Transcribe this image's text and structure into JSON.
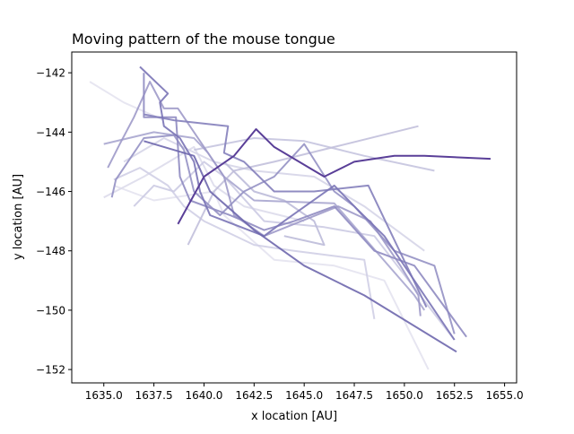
{
  "chart_data": {
    "type": "line",
    "title": "Moving pattern of the mouse tongue",
    "xlabel": "x location [AU]",
    "ylabel": "y location [AU]",
    "xlim": [
      1633.4,
      1655.6
    ],
    "ylim": [
      -152.45,
      -141.3
    ],
    "xticks": [
      1635.0,
      1637.5,
      1640.0,
      1642.5,
      1645.0,
      1647.5,
      1650.0,
      1652.5,
      1655.0
    ],
    "xtick_labels": [
      "1635.0",
      "1637.5",
      "1640.0",
      "1642.5",
      "1645.0",
      "1647.5",
      "1650.0",
      "1652.5",
      "1655.0"
    ],
    "yticks": [
      -142,
      -144,
      -146,
      -148,
      -150,
      -152
    ],
    "ytick_labels": [
      "−142",
      "−144",
      "−146",
      "−148",
      "−150",
      "−152"
    ],
    "grid": false,
    "legend": "none",
    "colormap": "Purples",
    "series": [
      {
        "color": "#e4e3f0",
        "opacity": 0.9,
        "points": [
          [
            1634.3,
            -142.3
          ],
          [
            1636.0,
            -143.0
          ],
          [
            1638.0,
            -143.6
          ]
        ]
      },
      {
        "color": "#e4e3f0",
        "opacity": 0.9,
        "points": [
          [
            1635.5,
            -145.8
          ],
          [
            1637.5,
            -146.3
          ],
          [
            1640.5,
            -146.0
          ],
          [
            1641.0,
            -146.8
          ],
          [
            1643.5,
            -148.3
          ],
          [
            1646.5,
            -148.5
          ],
          [
            1649.0,
            -149.0
          ],
          [
            1651.2,
            -152.0
          ]
        ]
      },
      {
        "color": "#dddceb",
        "opacity": 0.9,
        "points": [
          [
            1635.0,
            -146.2
          ],
          [
            1637.0,
            -145.5
          ],
          [
            1639.5,
            -144.5
          ],
          [
            1640.5,
            -145.8
          ],
          [
            1642.0,
            -146.5
          ],
          [
            1645.0,
            -147.0
          ]
        ]
      },
      {
        "color": "#d6d5e8",
        "opacity": 0.9,
        "points": [
          [
            1636.0,
            -145.0
          ],
          [
            1638.0,
            -144.2
          ],
          [
            1640.5,
            -145.0
          ],
          [
            1642.5,
            -145.3
          ],
          [
            1645.5,
            -145.5
          ],
          [
            1648.0,
            -146.5
          ],
          [
            1651.0,
            -148.0
          ]
        ]
      },
      {
        "color": "#d0cfe5",
        "opacity": 0.9,
        "points": [
          [
            1635.5,
            -145.6
          ],
          [
            1636.8,
            -145.2
          ],
          [
            1638.2,
            -145.8
          ],
          [
            1639.0,
            -146.5
          ],
          [
            1640.0,
            -147.0
          ],
          [
            1642.5,
            -147.8
          ],
          [
            1644.5,
            -148.0
          ],
          [
            1648.0,
            -148.3
          ],
          [
            1648.5,
            -150.3
          ]
        ]
      },
      {
        "color": "#cccbe3",
        "opacity": 0.9,
        "points": [
          [
            1636.5,
            -146.5
          ],
          [
            1637.5,
            -145.8
          ],
          [
            1638.5,
            -146.0
          ],
          [
            1640.0,
            -145.0
          ],
          [
            1641.0,
            -145.5
          ],
          [
            1643.0,
            -147.0
          ],
          [
            1646.0,
            -147.2
          ],
          [
            1648.5,
            -147.5
          ],
          [
            1652.5,
            -151.0
          ]
        ]
      },
      {
        "color": "#c5c4df",
        "opacity": 0.9,
        "points": [
          [
            1639.5,
            -144.6
          ],
          [
            1642.5,
            -144.2
          ],
          [
            1645.0,
            -144.3
          ],
          [
            1648.0,
            -144.8
          ],
          [
            1651.5,
            -145.3
          ]
        ]
      },
      {
        "color": "#c2c0dc",
        "opacity": 0.9,
        "points": [
          [
            1639.2,
            -147.8
          ],
          [
            1640.5,
            -146.0
          ],
          [
            1641.5,
            -145.3
          ],
          [
            1643.5,
            -145.0
          ],
          [
            1646.5,
            -144.5
          ],
          [
            1650.7,
            -143.8
          ]
        ]
      },
      {
        "color": "#bcbbd9",
        "opacity": 0.9,
        "points": [
          [
            1641.0,
            -145.0
          ],
          [
            1642.5,
            -146.0
          ],
          [
            1644.0,
            -146.3
          ],
          [
            1645.5,
            -147.0
          ],
          [
            1646.0,
            -147.8
          ],
          [
            1644.0,
            -147.5
          ]
        ]
      },
      {
        "color": "#a9a6cf",
        "opacity": 0.9,
        "points": [
          [
            1635.0,
            -144.4
          ],
          [
            1637.5,
            -144.0
          ],
          [
            1639.5,
            -144.2
          ],
          [
            1640.2,
            -144.7
          ],
          [
            1641.0,
            -145.5
          ],
          [
            1642.5,
            -146.3
          ],
          [
            1646.5,
            -146.4
          ],
          [
            1650.5,
            -149.5
          ],
          [
            1651.0,
            -150.0
          ]
        ]
      },
      {
        "color": "#9e9ac9",
        "opacity": 0.9,
        "points": [
          [
            1635.2,
            -145.2
          ],
          [
            1635.8,
            -144.4
          ],
          [
            1636.5,
            -143.5
          ],
          [
            1637.3,
            -142.3
          ],
          [
            1638.0,
            -143.2
          ],
          [
            1638.7,
            -143.2
          ],
          [
            1641.0,
            -145.5
          ],
          [
            1641.5,
            -146.8
          ],
          [
            1643.0,
            -147.5
          ],
          [
            1646.7,
            -146.5
          ],
          [
            1648.3,
            -147.0
          ],
          [
            1649.8,
            -148.5
          ],
          [
            1650.7,
            -149.5
          ],
          [
            1650.8,
            -150.2
          ]
        ]
      },
      {
        "color": "#9591c4",
        "opacity": 0.9,
        "points": [
          [
            1635.4,
            -146.2
          ],
          [
            1635.6,
            -145.6
          ],
          [
            1636.2,
            -145.0
          ],
          [
            1637.0,
            -144.2
          ],
          [
            1638.5,
            -144.1
          ],
          [
            1639.0,
            -144.6
          ],
          [
            1639.5,
            -146.0
          ],
          [
            1640.8,
            -146.8
          ],
          [
            1642.0,
            -146.0
          ],
          [
            1643.5,
            -145.5
          ],
          [
            1645.0,
            -144.4
          ],
          [
            1646.5,
            -146.0
          ],
          [
            1647.5,
            -146.5
          ],
          [
            1649.5,
            -148.0
          ],
          [
            1651.5,
            -148.5
          ],
          [
            1652.5,
            -150.8
          ]
        ]
      },
      {
        "color": "#8f8bc1",
        "opacity": 0.9,
        "points": [
          [
            1637.0,
            -142.0
          ],
          [
            1637.0,
            -143.5
          ],
          [
            1638.6,
            -143.5
          ],
          [
            1638.8,
            -145.5
          ],
          [
            1639.3,
            -146.3
          ],
          [
            1641.3,
            -146.8
          ],
          [
            1642.0,
            -147.0
          ],
          [
            1643.0,
            -147.3
          ],
          [
            1644.5,
            -147.0
          ],
          [
            1646.5,
            -146.5
          ],
          [
            1648.5,
            -148.0
          ],
          [
            1650.5,
            -148.5
          ],
          [
            1653.1,
            -150.9
          ]
        ]
      },
      {
        "color": "#8480bb",
        "opacity": 0.9,
        "points": [
          [
            1637.0,
            -143.4
          ],
          [
            1638.5,
            -143.6
          ],
          [
            1641.2,
            -143.8
          ],
          [
            1641.0,
            -144.7
          ],
          [
            1642.0,
            -145.0
          ],
          [
            1643.5,
            -146.0
          ],
          [
            1645.5,
            -146.0
          ],
          [
            1648.2,
            -145.8
          ],
          [
            1651.1,
            -149.9
          ]
        ]
      },
      {
        "color": "#7a74b6",
        "opacity": 0.9,
        "points": [
          [
            1636.8,
            -141.8
          ],
          [
            1638.2,
            -142.7
          ],
          [
            1637.8,
            -143.0
          ],
          [
            1638.0,
            -143.8
          ],
          [
            1638.8,
            -144.2
          ],
          [
            1639.5,
            -145.0
          ],
          [
            1639.8,
            -146.0
          ],
          [
            1640.3,
            -146.8
          ],
          [
            1643.0,
            -147.5
          ],
          [
            1644.0,
            -147.0
          ],
          [
            1646.5,
            -145.8
          ],
          [
            1647.5,
            -146.5
          ],
          [
            1649.0,
            -147.5
          ],
          [
            1651.0,
            -149.5
          ],
          [
            1652.5,
            -151.0
          ]
        ]
      },
      {
        "color": "#6e67ad",
        "opacity": 0.9,
        "points": [
          [
            1637.0,
            -144.3
          ],
          [
            1639.5,
            -144.8
          ],
          [
            1640.3,
            -146.0
          ],
          [
            1642.5,
            -147.3
          ],
          [
            1645.0,
            -148.5
          ],
          [
            1648.0,
            -149.5
          ],
          [
            1652.6,
            -151.4
          ]
        ]
      },
      {
        "color": "#5a3f98",
        "opacity": 1.0,
        "points": [
          [
            1638.7,
            -147.1
          ],
          [
            1640.0,
            -145.5
          ],
          [
            1641.5,
            -144.8
          ],
          [
            1642.6,
            -143.9
          ],
          [
            1643.5,
            -144.5
          ],
          [
            1645.5,
            -145.3
          ],
          [
            1646.0,
            -145.5
          ],
          [
            1647.5,
            -145.0
          ],
          [
            1649.5,
            -144.8
          ],
          [
            1651.0,
            -144.8
          ],
          [
            1654.3,
            -144.9
          ]
        ]
      }
    ]
  }
}
